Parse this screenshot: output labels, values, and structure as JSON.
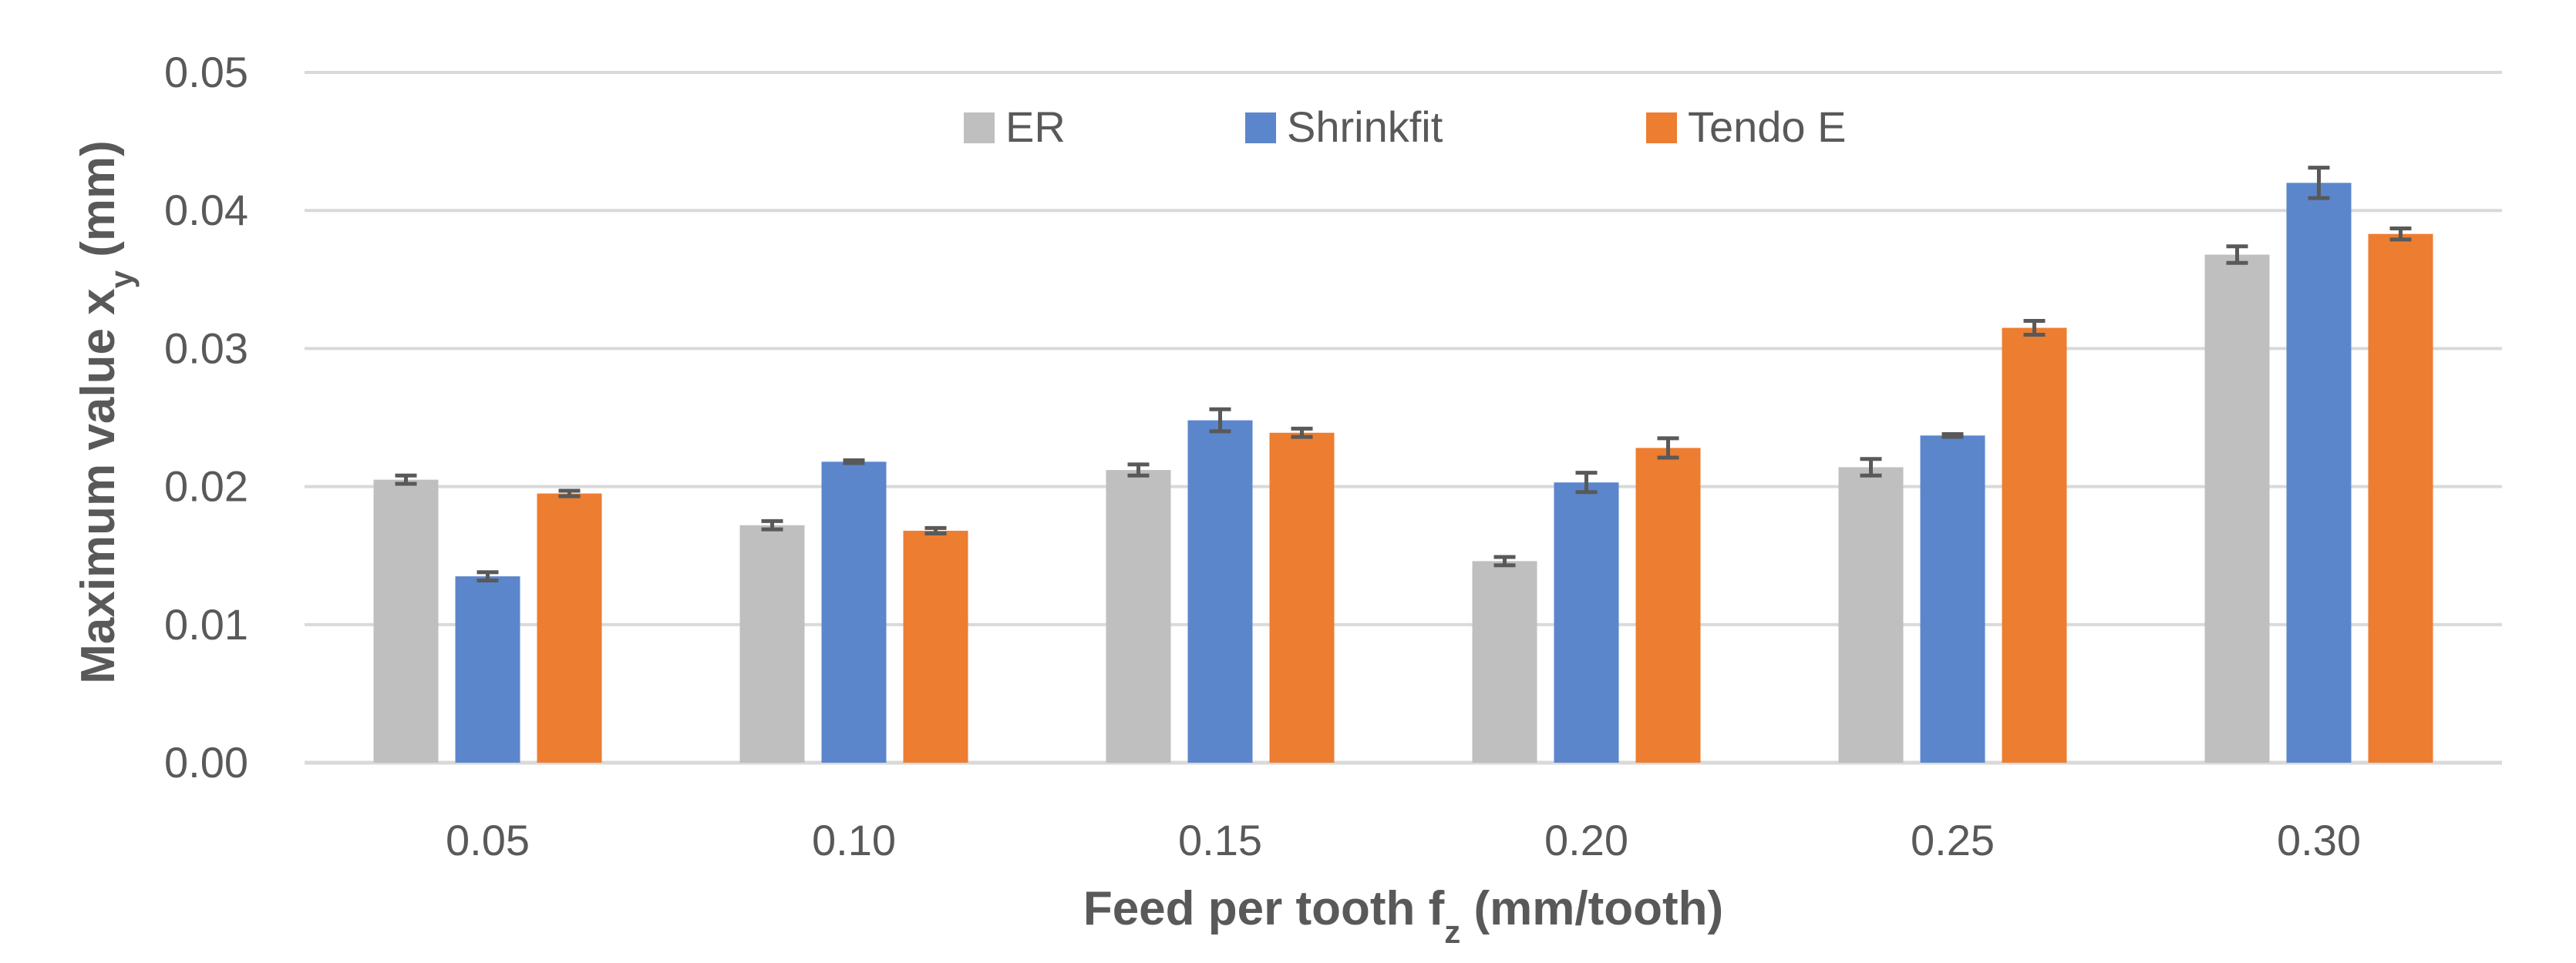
{
  "chart_data": {
    "type": "bar",
    "title": "",
    "xlabel": {
      "main": "Feed per tooth f",
      "sub": "z",
      "rest": " (mm/tooth)"
    },
    "ylabel": {
      "main": "Maximum value x",
      "sub": "y",
      "rest": " (mm)"
    },
    "categories": [
      "0.05",
      "0.10",
      "0.15",
      "0.20",
      "0.25",
      "0.30"
    ],
    "yticks": [
      "0.00",
      "0.01",
      "0.02",
      "0.03",
      "0.04",
      "0.05"
    ],
    "ylim": [
      0,
      0.05
    ],
    "grid": true,
    "legend_position": "top-center",
    "series": [
      {
        "name": "ER",
        "color": "#BFBFBF",
        "values": [
          0.0205,
          0.0172,
          0.0212,
          0.0146,
          0.0214,
          0.0368
        ],
        "errors": [
          0.0003,
          0.0003,
          0.0004,
          0.0003,
          0.0006,
          0.0006
        ]
      },
      {
        "name": "Shrinkfit",
        "color": "#5B86CC",
        "values": [
          0.0135,
          0.0218,
          0.0248,
          0.0203,
          0.0237,
          0.042
        ],
        "errors": [
          0.0003,
          0.0001,
          0.0008,
          0.0007,
          0.0001,
          0.0011
        ]
      },
      {
        "name": "Tendo E",
        "color": "#ED7D31",
        "values": [
          0.0195,
          0.0168,
          0.0239,
          0.0228,
          0.0315,
          0.0383
        ],
        "errors": [
          0.0002,
          0.0002,
          0.0003,
          0.0007,
          0.0005,
          0.0004
        ]
      }
    ],
    "error_bar_color": "#595959",
    "grid_color": "#D9D9D9"
  }
}
